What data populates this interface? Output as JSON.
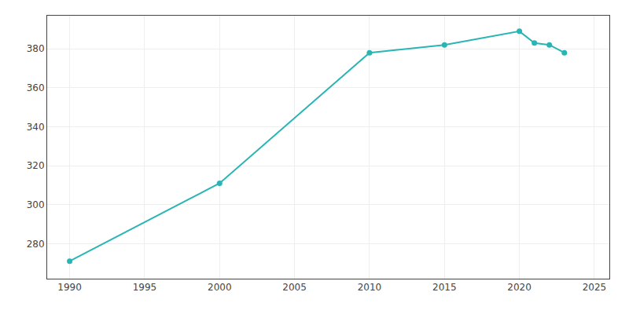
{
  "chart_data": {
    "type": "line",
    "x": [
      1990,
      2000,
      2010,
      2015,
      2020,
      2021,
      2022,
      2023
    ],
    "values": [
      271,
      311,
      378,
      382,
      389,
      383,
      382,
      378
    ],
    "color": "#2ab5b5",
    "marker": "circle",
    "xlim": [
      1988.5,
      2026
    ],
    "ylim": [
      262,
      397
    ],
    "xticks": [
      1990,
      1995,
      2000,
      2005,
      2010,
      2015,
      2020,
      2025
    ],
    "yticks": [
      280,
      300,
      320,
      340,
      360,
      380
    ],
    "grid": true
  }
}
